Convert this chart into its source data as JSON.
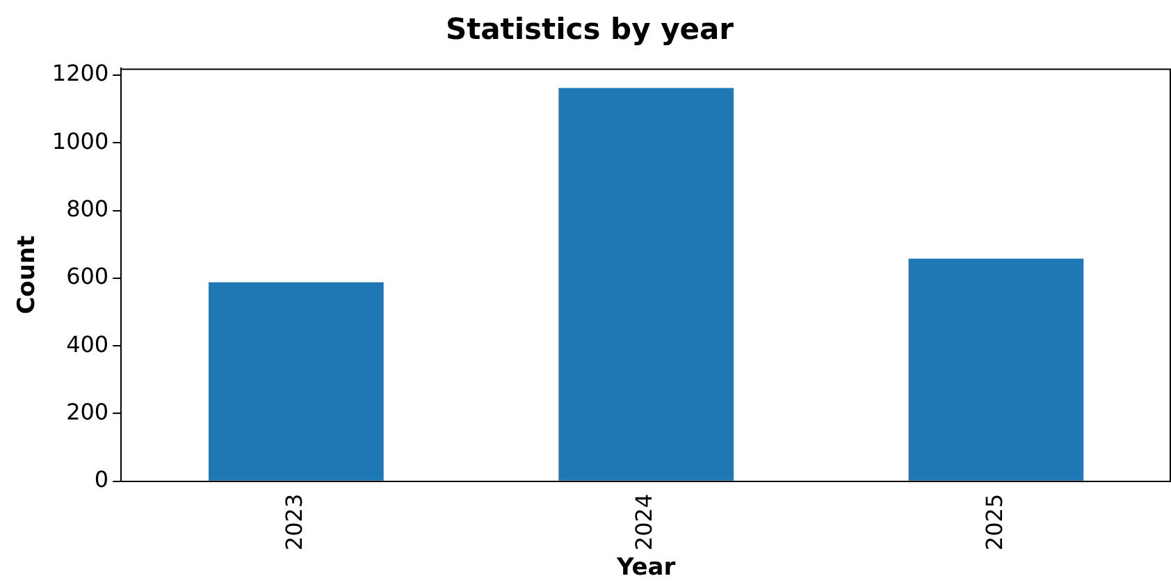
{
  "chart_data": {
    "type": "bar",
    "title": "Statistics by year",
    "xlabel": "Year",
    "ylabel": "Count",
    "categories": [
      "2023",
      "2024",
      "2025"
    ],
    "values": [
      588,
      1162,
      658
    ],
    "color": "#1f77b4",
    "ylim": [
      0,
      1220
    ],
    "yticks": [
      0,
      200,
      400,
      600,
      800,
      1000,
      1200
    ],
    "grid": false,
    "legend": false
  }
}
